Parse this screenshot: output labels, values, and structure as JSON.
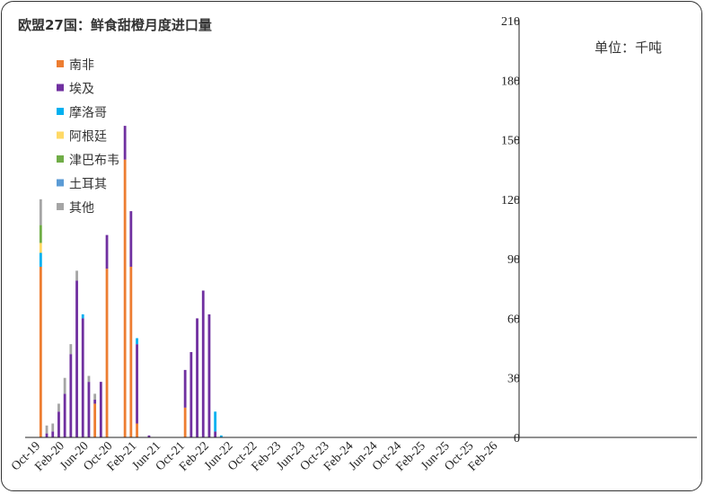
{
  "chart_data": {
    "type": "bar",
    "stacked": true,
    "title": "欧盟27国：鲜食甜橙月度进口量",
    "unit_label": "单位：千吨",
    "y_axis_position": "right",
    "ylim": [
      0,
      210
    ],
    "yticks": [
      0,
      30,
      60,
      90,
      120,
      150,
      180,
      210
    ],
    "grid": false,
    "legend_position": "top-left",
    "x_tick_labels": [
      {
        "index": 0,
        "label": "Oct-19"
      },
      {
        "index": 4,
        "label": "Feb-20"
      },
      {
        "index": 8,
        "label": "Jun-20"
      },
      {
        "index": 12,
        "label": "Oct-20"
      },
      {
        "index": 16,
        "label": "Feb-21"
      },
      {
        "index": 20,
        "label": "Jun-21"
      },
      {
        "index": 24,
        "label": "Oct-21"
      },
      {
        "index": 28,
        "label": "Feb-22"
      },
      {
        "index": 32,
        "label": "Jun-22"
      },
      {
        "index": 36,
        "label": "Oct-22"
      },
      {
        "index": 40,
        "label": "Feb-23"
      },
      {
        "index": 44,
        "label": "Jun-23"
      },
      {
        "index": 48,
        "label": "Oct-23"
      },
      {
        "index": 52,
        "label": "Feb-24"
      },
      {
        "index": 56,
        "label": "Jun-24"
      },
      {
        "index": 60,
        "label": "Oct-24"
      },
      {
        "index": 64,
        "label": "Feb-25"
      },
      {
        "index": 68,
        "label": "Jun-25"
      },
      {
        "index": 72,
        "label": "Oct-25"
      },
      {
        "index": 76,
        "label": "Feb-26"
      }
    ],
    "num_categories": 80,
    "series": [
      {
        "name": "南非",
        "color": "#ED7D31",
        "values": [
          86,
          0,
          0,
          0,
          0,
          0,
          0,
          0,
          0,
          17,
          0,
          85,
          0,
          0,
          140,
          86,
          7,
          0,
          0,
          0,
          0,
          0,
          0,
          0,
          15,
          0,
          0,
          0,
          0,
          0,
          0,
          0,
          0,
          0,
          0,
          0,
          0,
          0,
          0,
          0,
          0,
          0,
          0,
          0,
          0,
          0,
          0,
          0,
          0,
          0,
          0,
          0,
          0,
          0,
          0,
          0,
          0,
          0,
          0,
          0,
          0,
          0,
          0,
          0,
          0,
          0,
          0,
          0,
          0,
          0,
          0,
          0,
          0,
          0,
          0,
          0,
          0,
          0,
          0,
          0
        ]
      },
      {
        "name": "埃及",
        "color": "#7030A0",
        "values": [
          0,
          2,
          3,
          13,
          22,
          42,
          79,
          60,
          28,
          2,
          28,
          17,
          0,
          0,
          17,
          28,
          40,
          0,
          1,
          0,
          0,
          0,
          0,
          0,
          19,
          43,
          60,
          74,
          62,
          3,
          0,
          0,
          0,
          0,
          0,
          0,
          0,
          0,
          0,
          0,
          0,
          0,
          0,
          0,
          0,
          0,
          0,
          0,
          0,
          0,
          0,
          0,
          0,
          0,
          0,
          0,
          0,
          0,
          0,
          0,
          0,
          0,
          0,
          0,
          0,
          0,
          0,
          0,
          0,
          0,
          0,
          0,
          0,
          0,
          0,
          0,
          0,
          0,
          0,
          0
        ]
      },
      {
        "name": "摩洛哥",
        "color": "#00B0F0",
        "values": [
          7,
          0,
          0,
          0,
          0,
          0,
          0,
          2,
          0,
          0,
          0,
          0,
          0,
          0,
          0,
          0,
          3,
          0,
          0,
          0,
          0,
          0,
          0,
          0,
          0,
          0,
          0,
          0,
          0,
          10,
          1,
          0,
          0,
          0,
          0,
          0,
          0,
          0,
          0,
          0,
          0,
          0,
          0,
          0,
          0,
          0,
          0,
          0,
          0,
          0,
          0,
          0,
          0,
          0,
          0,
          0,
          0,
          0,
          0,
          0,
          0,
          0,
          0,
          0,
          0,
          0,
          0,
          0,
          0,
          0,
          0,
          0,
          0,
          0,
          0,
          0,
          0,
          0,
          0,
          0
        ]
      },
      {
        "name": "阿根廷",
        "color": "#FFD966",
        "values": [
          5,
          0,
          0,
          0,
          0,
          0,
          0,
          0,
          0,
          0,
          0,
          0,
          0,
          0,
          0,
          0,
          0,
          0,
          0,
          0,
          0,
          0,
          0,
          0,
          0,
          0,
          0,
          0,
          0,
          0,
          0,
          0,
          0,
          0,
          0,
          0,
          0,
          0,
          0,
          0,
          0,
          0,
          0,
          0,
          0,
          0,
          0,
          0,
          0,
          0,
          0,
          0,
          0,
          0,
          0,
          0,
          0,
          0,
          0,
          0,
          0,
          0,
          0,
          0,
          0,
          0,
          0,
          0,
          0,
          0,
          0,
          0,
          0,
          0,
          0,
          0,
          0,
          0,
          0,
          0
        ]
      },
      {
        "name": "津巴布韦",
        "color": "#70AD47",
        "values": [
          9,
          0,
          0,
          0,
          0,
          0,
          0,
          0,
          0,
          0,
          0,
          0,
          0,
          0,
          0,
          0,
          0,
          0,
          0,
          0,
          0,
          0,
          0,
          0,
          0,
          0,
          0,
          0,
          0,
          0,
          0,
          0,
          0,
          0,
          0,
          0,
          0,
          0,
          0,
          0,
          0,
          0,
          0,
          0,
          0,
          0,
          0,
          0,
          0,
          0,
          0,
          0,
          0,
          0,
          0,
          0,
          0,
          0,
          0,
          0,
          0,
          0,
          0,
          0,
          0,
          0,
          0,
          0,
          0,
          0,
          0,
          0,
          0,
          0,
          0,
          0,
          0,
          0,
          0,
          0
        ]
      },
      {
        "name": "土耳其",
        "color": "#5B9BD5",
        "values": [
          0,
          0,
          0,
          0,
          0,
          0,
          0,
          0,
          0,
          0,
          0,
          0,
          0,
          0,
          0,
          0,
          0,
          0,
          0,
          0,
          0,
          0,
          0,
          0,
          0,
          0,
          0,
          0,
          0,
          0,
          0,
          0,
          0,
          0,
          0,
          0,
          0,
          0,
          0,
          0,
          0,
          0,
          0,
          0,
          0,
          0,
          0,
          0,
          0,
          0,
          0,
          0,
          0,
          0,
          0,
          0,
          0,
          0,
          0,
          0,
          0,
          0,
          0,
          0,
          0,
          0,
          0,
          0,
          0,
          0,
          0,
          0,
          0,
          0,
          0,
          0,
          0,
          0,
          0,
          0
        ]
      },
      {
        "name": "其他",
        "color": "#A5A5A5",
        "values": [
          13,
          4,
          4,
          4,
          8,
          5,
          5,
          0,
          3,
          3,
          0,
          0,
          0,
          0,
          0,
          0,
          0,
          0,
          0,
          0,
          0,
          0,
          0,
          0,
          0,
          0,
          0,
          0,
          0,
          0,
          0,
          0,
          0,
          0,
          0,
          0,
          0,
          0,
          0,
          0,
          0,
          0,
          0,
          0,
          0,
          0,
          0,
          0,
          0,
          0,
          0,
          0,
          0,
          0,
          0,
          0,
          0,
          0,
          0,
          0,
          0,
          0,
          0,
          0,
          0,
          0,
          0,
          0,
          0,
          0,
          0,
          0,
          0,
          0,
          0,
          0,
          0,
          0,
          0,
          0
        ]
      }
    ]
  }
}
